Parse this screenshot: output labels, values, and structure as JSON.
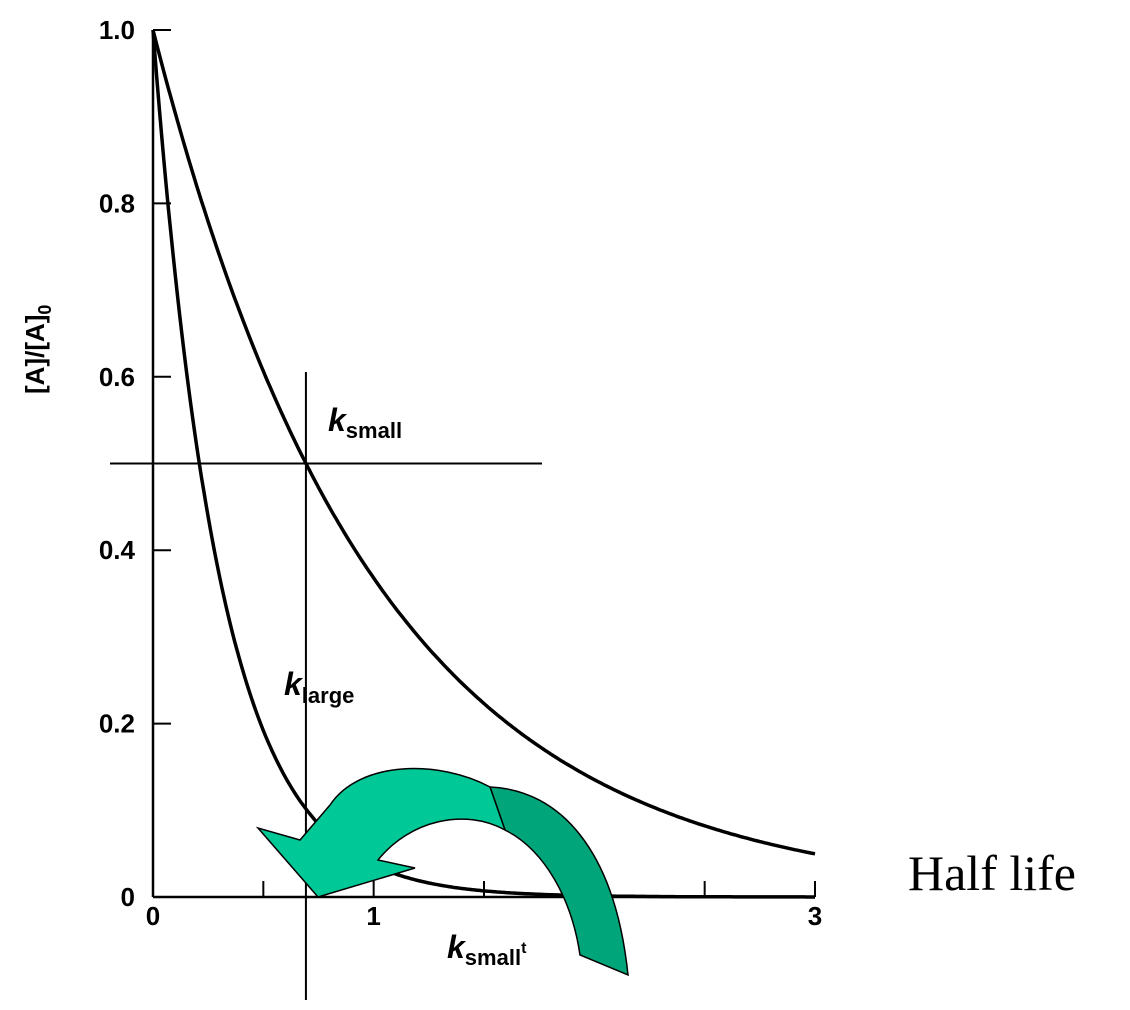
{
  "chart_data": {
    "type": "line",
    "ylabel_main": "[A]/[A]",
    "ylabel_sub": "0",
    "xlim": [
      0,
      3
    ],
    "ylim": [
      0,
      1.0
    ],
    "x_ticks": [
      0,
      1,
      3
    ],
    "x_tick_labels": [
      "0",
      "1",
      "3"
    ],
    "y_ticks": [
      0,
      0.2,
      0.4,
      0.6,
      0.8,
      1.0
    ],
    "y_tick_labels": [
      "0",
      "0.2",
      "0.4",
      "0.6",
      "0.8",
      "1.0"
    ],
    "x_minor_ticks": [
      0.5,
      1.5,
      2,
      2.5
    ],
    "series": [
      {
        "name": "k_small",
        "rate": 1.0,
        "x": [
          0,
          0.25,
          0.5,
          0.693,
          1.0,
          1.5,
          2.0,
          2.5,
          3.0
        ],
        "values": [
          1.0,
          0.78,
          0.61,
          0.5,
          0.37,
          0.22,
          0.14,
          0.08,
          0.05
        ]
      },
      {
        "name": "k_large",
        "rate": 3.3,
        "x": [
          0,
          0.1,
          0.21,
          0.4,
          0.693,
          1.0,
          1.5,
          2.0,
          3.0
        ],
        "values": [
          1.0,
          0.72,
          0.5,
          0.27,
          0.1,
          0.04,
          0.01,
          0.0,
          0.0
        ]
      }
    ],
    "half_life_marker": {
      "x": 0.693,
      "y": 0.5
    },
    "annotations": {
      "k_small_label": {
        "base": "k",
        "sub": "small"
      },
      "k_large_label": {
        "base": "k",
        "sub": "large"
      },
      "k_small_t_label": {
        "base": "k",
        "sub": "small",
        "suffix": "t"
      },
      "half_life": "Half life"
    },
    "arrow_colors": {
      "front": "#00c896",
      "back": "#00a57a",
      "outline": "#000000"
    }
  }
}
